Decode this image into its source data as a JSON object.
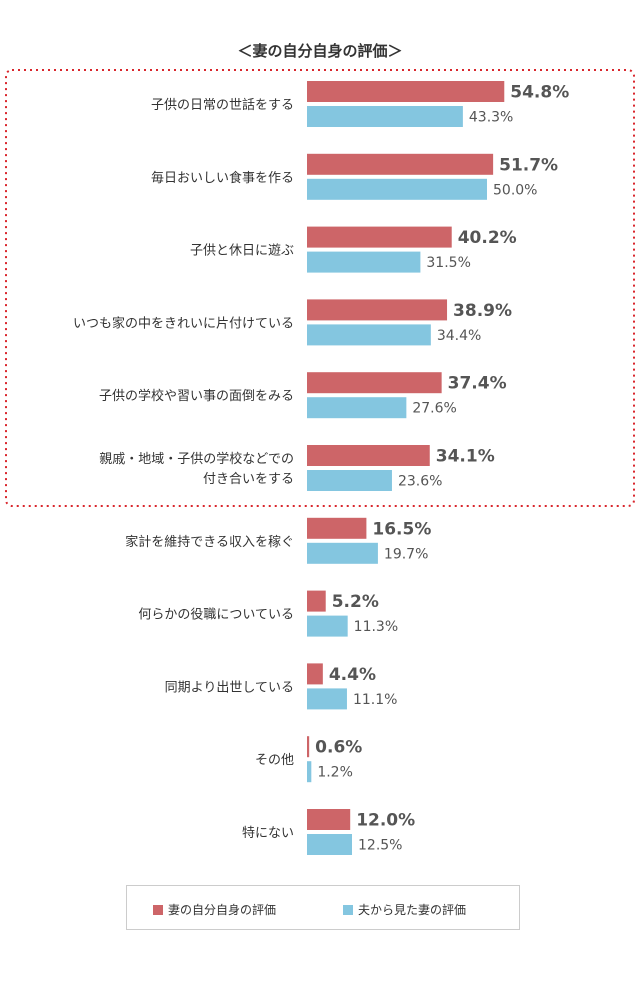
{
  "chart_data": {
    "type": "bar",
    "orientation": "horizontal",
    "title": "＜妻の自分自身の評価＞",
    "categories": [
      [
        "子供の日常の世話をする"
      ],
      [
        "毎日おいしい食事を作る"
      ],
      [
        "子供と休日に遊ぶ"
      ],
      [
        "いつも家の中をきれいに片付けている"
      ],
      [
        "子供の学校や習い事の面倒をみる"
      ],
      [
        "親戚・地域・子供の学校などでの",
        "付き合いをする"
      ],
      [
        "家計を維持できる収入を稼ぐ"
      ],
      [
        "何らかの役職についている"
      ],
      [
        "同期より出世している"
      ],
      [
        "その他"
      ],
      [
        "特にない"
      ]
    ],
    "series": [
      {
        "name": "妻の自分自身の評価",
        "color": "#cd6568",
        "values": [
          54.8,
          51.7,
          40.2,
          38.9,
          37.4,
          34.1,
          16.5,
          5.2,
          4.4,
          0.6,
          12.0
        ],
        "labels": [
          "54.8%",
          "51.7%",
          "40.2%",
          "38.9%",
          "37.4%",
          "34.1%",
          "16.5%",
          "5.2%",
          "4.4%",
          "0.6%",
          "12.0%"
        ]
      },
      {
        "name": "夫から見た妻の評価",
        "color": "#84c6e0",
        "values": [
          43.3,
          50.0,
          31.5,
          34.4,
          27.6,
          23.6,
          19.7,
          11.3,
          11.1,
          1.2,
          12.5
        ],
        "labels": [
          "43.3%",
          "50.0%",
          "31.5%",
          "34.4%",
          "27.6%",
          "23.6%",
          "19.7%",
          "11.3%",
          "11.1%",
          "1.2%",
          "12.5%"
        ]
      }
    ],
    "highlight": {
      "top_n_categories": 6,
      "style": "red dotted border"
    },
    "legend_position": "bottom"
  }
}
